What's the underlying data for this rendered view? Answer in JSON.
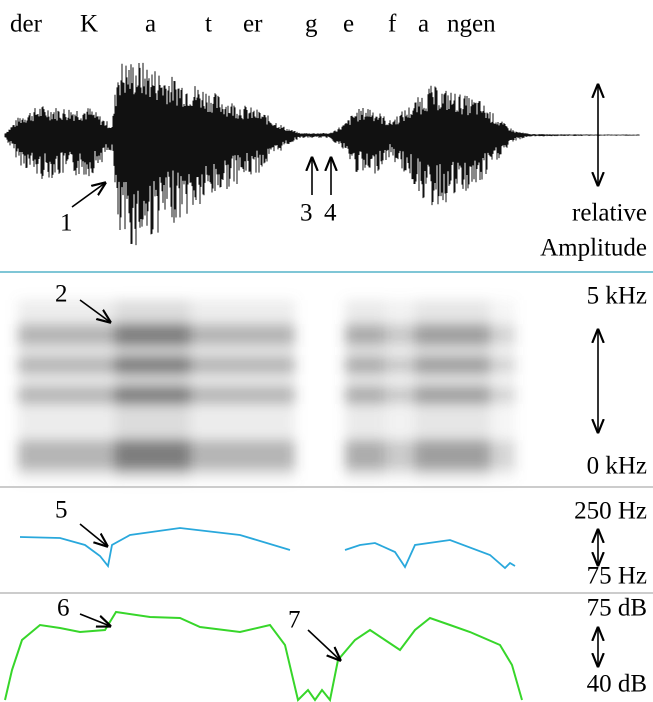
{
  "transcript": [
    "der",
    "K",
    "a",
    "t",
    "er",
    "g",
    "e",
    "f",
    "a",
    "ngen"
  ],
  "waveform": {
    "markers": [
      "1",
      "3",
      "4"
    ],
    "label": [
      "relative",
      "Amplitude"
    ]
  },
  "spectrogram": {
    "marker": "2",
    "top": "5 kHz",
    "bottom": "0 kHz"
  },
  "pitch": {
    "marker": "5",
    "top": "250 Hz",
    "bottom": "75 Hz"
  },
  "intensity": {
    "markers": [
      "6",
      "7"
    ],
    "top": "75 dB",
    "bottom": "40 dB"
  }
}
